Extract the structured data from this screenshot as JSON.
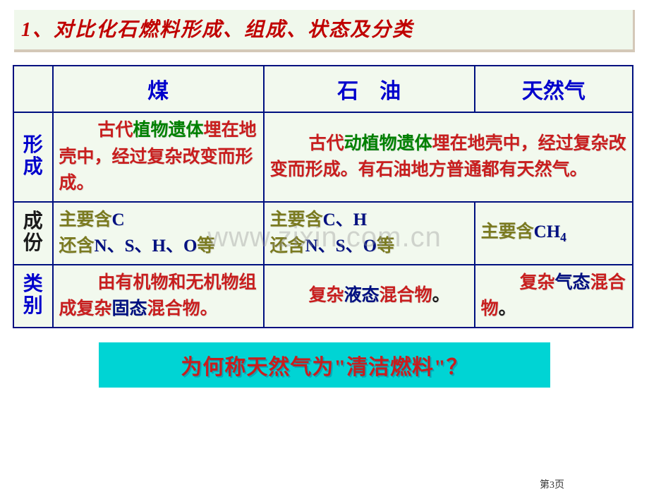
{
  "title": "1、对比化石燃料形成、组成、状态及分类",
  "watermark": "www.zixin.com.cn",
  "page_number": "第3页",
  "table": {
    "headers": {
      "blank": "",
      "coal": "煤",
      "oil": "石　油",
      "gas": "天然气"
    },
    "row_labels": {
      "formation": "形成",
      "composition": "成份",
      "category": "类别"
    },
    "formation": {
      "coal_pre": "古代",
      "coal_green": "植物遗体",
      "coal_rest": "埋在地壳中，经过复杂改变而形成。",
      "oilgas_pre": "古代",
      "oilgas_green": "动植物遗体",
      "oilgas_rest1": "埋在地壳中，经过复杂改变而形成。有石油地方普通都有天然气。"
    },
    "composition": {
      "coal_l1a": "主要含",
      "coal_l1b": "C",
      "coal_l2a": "还含",
      "coal_l2b": "N、S、H、O",
      "coal_l2c": "等",
      "oil_l1a": "主要含",
      "oil_l1b": "C、H",
      "oil_l2a": "还含",
      "oil_l2b": "N、S、O",
      "oil_l2c": "等",
      "gas_l1a": "主要含",
      "gas_l1b": "CH",
      "gas_l1sub": "4"
    },
    "category": {
      "coal_a": "由有机物和无机物组成复杂",
      "coal_b": "固态",
      "coal_c": "混合物。",
      "oil_a": "复杂",
      "oil_b": "液态",
      "oil_c": "混合物",
      "oil_d": "。",
      "gas_a": "复杂",
      "gas_b": "气态",
      "gas_c": "混合物",
      "gas_d": "。"
    }
  },
  "bottom": {
    "q_a": "为何称天然气为",
    "q_b": "\"清洁燃料\"",
    "q_c": "？"
  },
  "colors": {
    "title_bg": "#f0f8ec",
    "title_text": "#c00000",
    "table_bg": "#f2f9ee",
    "border": "#001080",
    "blue": "#0000cc",
    "red": "#c81e1e",
    "green": "#008000",
    "olive": "#7a7a20",
    "navy": "#001080",
    "cyan": "#00d4d4"
  }
}
